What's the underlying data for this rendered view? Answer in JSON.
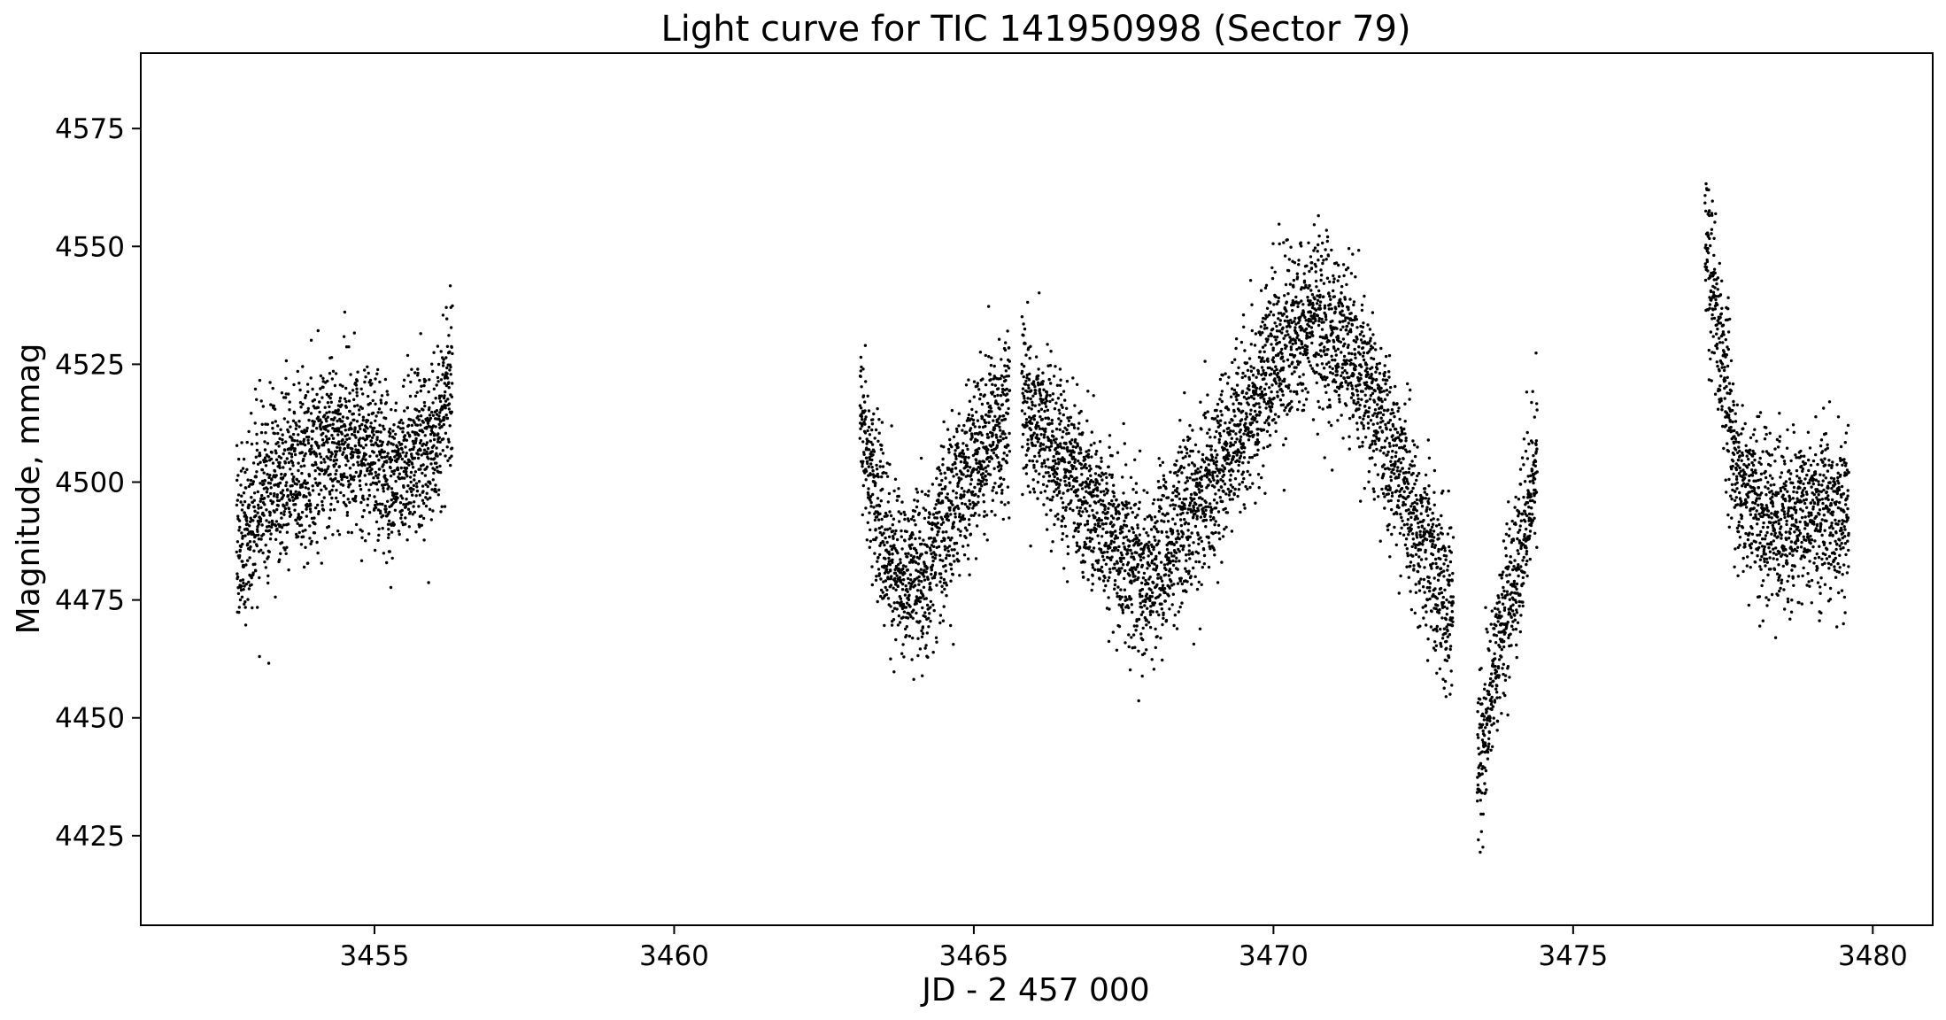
{
  "chart_data": {
    "type": "scatter",
    "title": "Light curve for TIC 141950998 (Sector 79)",
    "xlabel": "JD - 2 457 000",
    "ylabel": "Magnitude, mmag",
    "xlim": [
      3451.1,
      3481.0
    ],
    "ylim": [
      4406,
      4591
    ],
    "y_inverted": false,
    "grid": false,
    "legend": "none",
    "x_ticks": [
      3455,
      3460,
      3465,
      3470,
      3475,
      3480
    ],
    "y_ticks": [
      4425,
      4450,
      4475,
      4500,
      4525,
      4550,
      4575
    ],
    "marker_color": "#000000",
    "segments": [
      {
        "x": [
          3452.7,
          3453.3,
          3454.0,
          3454.7,
          3455.3,
          3456.0,
          3456.3
        ],
        "y": [
          4486,
          4499,
          4506,
          4510,
          4502,
          4508,
          4522
        ],
        "scatter": 9
      },
      {
        "x": [
          3463.1,
          3463.4,
          3463.8,
          3464.2,
          3464.8,
          3465.6
        ],
        "y": [
          4518,
          4492,
          4478,
          4480,
          4500,
          4515
        ],
        "scatter": 9
      },
      {
        "x": [
          3465.8,
          3466.4,
          3467.0,
          3467.8,
          3468.5,
          3469.3,
          3470.0,
          3470.6,
          3471.3,
          3472.0,
          3472.5,
          3473.0
        ],
        "y": [
          4520,
          4505,
          4495,
          4480,
          4490,
          4508,
          4525,
          4536,
          4528,
          4505,
          4488,
          4472
        ],
        "scatter": 9
      },
      {
        "x": [
          3473.4,
          3473.7,
          3474.0,
          3474.4
        ],
        "y": [
          4438,
          4462,
          4478,
          4505
        ],
        "scatter": 9
      },
      {
        "x": [
          3477.2,
          3477.4,
          3477.7,
          3478.0,
          3478.5,
          3479.0,
          3479.6
        ],
        "y": [
          4555,
          4535,
          4505,
          4494,
          4490,
          4493,
          4494
        ],
        "scatter": 9
      }
    ]
  }
}
